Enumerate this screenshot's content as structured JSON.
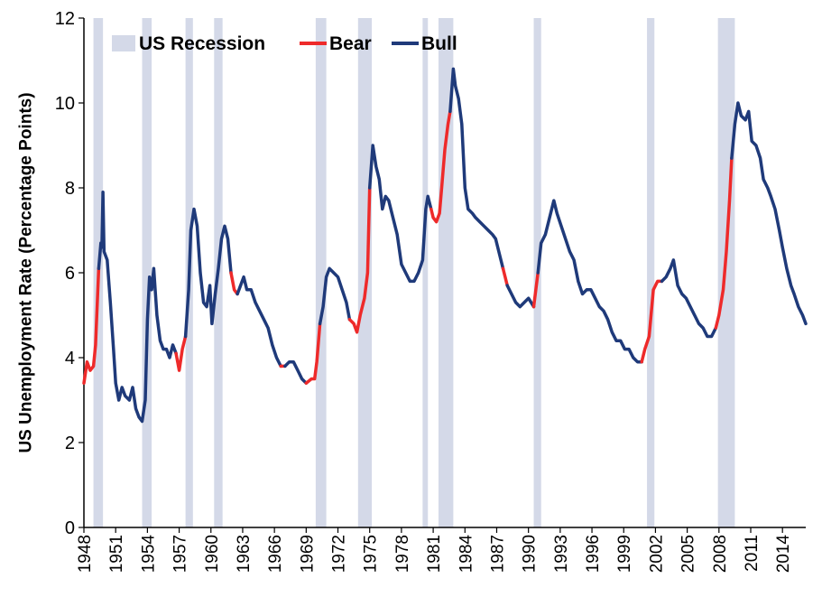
{
  "chart_data": {
    "type": "line",
    "title": "",
    "xlabel": "",
    "ylabel": "US Unemployment Rate (Percentage Points)",
    "xlim": [
      1948,
      2016.2
    ],
    "ylim": [
      0,
      12
    ],
    "yticks": [
      "0",
      "2",
      "4",
      "6",
      "8",
      "10",
      "12"
    ],
    "xticks": [
      "1948",
      "1951",
      "1954",
      "1957",
      "1960",
      "1963",
      "1966",
      "1969",
      "1972",
      "1975",
      "1978",
      "1981",
      "1984",
      "1987",
      "1990",
      "1993",
      "1996",
      "1999",
      "2002",
      "2005",
      "2008",
      "2011",
      "2014"
    ],
    "grid": false,
    "legend": {
      "position": "top-left",
      "entries": [
        {
          "name": "US Recession",
          "kind": "band",
          "color": "#d4d9e8"
        },
        {
          "name": "Bear",
          "kind": "line",
          "color": "#ee2a2a"
        },
        {
          "name": "Bull",
          "kind": "line",
          "color": "#1f3a7a"
        }
      ]
    },
    "recessions": [
      [
        1948.9,
        1949.8
      ],
      [
        1953.5,
        1954.4
      ],
      [
        1957.6,
        1958.3
      ],
      [
        1960.3,
        1961.1
      ],
      [
        1969.9,
        1970.9
      ],
      [
        1973.9,
        1975.2
      ],
      [
        1980.0,
        1980.5
      ],
      [
        1981.5,
        1982.9
      ],
      [
        1990.5,
        1991.2
      ],
      [
        2001.2,
        2001.9
      ],
      [
        2007.9,
        2009.5
      ]
    ],
    "bear_periods": [
      [
        1948.0,
        1949.4
      ],
      [
        1956.6,
        1957.7
      ],
      [
        1961.9,
        1962.5
      ],
      [
        1966.5,
        1966.9
      ],
      [
        1968.9,
        1970.4
      ],
      [
        1973.1,
        1974.9
      ],
      [
        1980.9,
        1982.6
      ],
      [
        1987.7,
        1988.0
      ],
      [
        1990.5,
        1990.9
      ],
      [
        2000.7,
        2002.4
      ],
      [
        2007.8,
        2009.2
      ]
    ],
    "series": [
      {
        "name": "Unemployment rate",
        "points": [
          [
            1948.0,
            3.4
          ],
          [
            1948.3,
            3.9
          ],
          [
            1948.6,
            3.7
          ],
          [
            1948.9,
            3.8
          ],
          [
            1949.1,
            4.3
          ],
          [
            1949.4,
            6.1
          ],
          [
            1949.6,
            6.7
          ],
          [
            1949.7,
            6.6
          ],
          [
            1949.8,
            7.9
          ],
          [
            1949.9,
            6.5
          ],
          [
            1950.2,
            6.3
          ],
          [
            1950.5,
            5.3
          ],
          [
            1950.8,
            4.2
          ],
          [
            1951.0,
            3.4
          ],
          [
            1951.3,
            3.0
          ],
          [
            1951.6,
            3.3
          ],
          [
            1951.9,
            3.1
          ],
          [
            1952.3,
            3.0
          ],
          [
            1952.6,
            3.3
          ],
          [
            1952.9,
            2.8
          ],
          [
            1953.2,
            2.6
          ],
          [
            1953.5,
            2.5
          ],
          [
            1953.8,
            3.0
          ],
          [
            1954.0,
            4.9
          ],
          [
            1954.2,
            5.9
          ],
          [
            1954.4,
            5.6
          ],
          [
            1954.6,
            6.1
          ],
          [
            1954.9,
            5.0
          ],
          [
            1955.2,
            4.4
          ],
          [
            1955.5,
            4.2
          ],
          [
            1955.8,
            4.2
          ],
          [
            1956.1,
            4.0
          ],
          [
            1956.4,
            4.3
          ],
          [
            1956.7,
            4.1
          ],
          [
            1957.0,
            3.7
          ],
          [
            1957.3,
            4.2
          ],
          [
            1957.6,
            4.5
          ],
          [
            1957.9,
            5.6
          ],
          [
            1958.1,
            7.0
          ],
          [
            1958.4,
            7.5
          ],
          [
            1958.7,
            7.1
          ],
          [
            1959.0,
            6.0
          ],
          [
            1959.3,
            5.3
          ],
          [
            1959.6,
            5.2
          ],
          [
            1959.9,
            5.7
          ],
          [
            1960.1,
            4.8
          ],
          [
            1960.4,
            5.5
          ],
          [
            1960.7,
            6.1
          ],
          [
            1961.0,
            6.8
          ],
          [
            1961.3,
            7.1
          ],
          [
            1961.6,
            6.8
          ],
          [
            1961.9,
            6.0
          ],
          [
            1962.2,
            5.6
          ],
          [
            1962.5,
            5.5
          ],
          [
            1962.8,
            5.7
          ],
          [
            1963.1,
            5.9
          ],
          [
            1963.4,
            5.6
          ],
          [
            1963.8,
            5.6
          ],
          [
            1964.2,
            5.3
          ],
          [
            1964.6,
            5.1
          ],
          [
            1965.0,
            4.9
          ],
          [
            1965.4,
            4.7
          ],
          [
            1965.8,
            4.3
          ],
          [
            1966.2,
            4.0
          ],
          [
            1966.6,
            3.8
          ],
          [
            1967.0,
            3.8
          ],
          [
            1967.4,
            3.9
          ],
          [
            1967.8,
            3.9
          ],
          [
            1968.2,
            3.7
          ],
          [
            1968.6,
            3.5
          ],
          [
            1969.0,
            3.4
          ],
          [
            1969.5,
            3.5
          ],
          [
            1969.8,
            3.5
          ],
          [
            1970.0,
            3.9
          ],
          [
            1970.3,
            4.8
          ],
          [
            1970.6,
            5.2
          ],
          [
            1970.9,
            5.9
          ],
          [
            1971.2,
            6.1
          ],
          [
            1971.6,
            6.0
          ],
          [
            1972.0,
            5.9
          ],
          [
            1972.4,
            5.6
          ],
          [
            1972.8,
            5.3
          ],
          [
            1973.1,
            4.9
          ],
          [
            1973.5,
            4.8
          ],
          [
            1973.8,
            4.6
          ],
          [
            1974.1,
            5.0
          ],
          [
            1974.5,
            5.4
          ],
          [
            1974.8,
            6.0
          ],
          [
            1975.0,
            8.0
          ],
          [
            1975.3,
            9.0
          ],
          [
            1975.6,
            8.5
          ],
          [
            1975.9,
            8.2
          ],
          [
            1976.2,
            7.5
          ],
          [
            1976.5,
            7.8
          ],
          [
            1976.8,
            7.7
          ],
          [
            1977.2,
            7.3
          ],
          [
            1977.6,
            6.9
          ],
          [
            1978.0,
            6.2
          ],
          [
            1978.4,
            6.0
          ],
          [
            1978.8,
            5.8
          ],
          [
            1979.2,
            5.8
          ],
          [
            1979.6,
            6.0
          ],
          [
            1980.0,
            6.3
          ],
          [
            1980.3,
            7.5
          ],
          [
            1980.5,
            7.8
          ],
          [
            1980.8,
            7.5
          ],
          [
            1981.0,
            7.3
          ],
          [
            1981.3,
            7.2
          ],
          [
            1981.6,
            7.4
          ],
          [
            1981.8,
            8.0
          ],
          [
            1982.1,
            8.9
          ],
          [
            1982.4,
            9.5
          ],
          [
            1982.6,
            9.8
          ],
          [
            1982.9,
            10.8
          ],
          [
            1983.1,
            10.4
          ],
          [
            1983.4,
            10.1
          ],
          [
            1983.7,
            9.5
          ],
          [
            1984.0,
            8.0
          ],
          [
            1984.3,
            7.5
          ],
          [
            1984.7,
            7.4
          ],
          [
            1985.0,
            7.3
          ],
          [
            1985.4,
            7.2
          ],
          [
            1985.8,
            7.1
          ],
          [
            1986.2,
            7.0
          ],
          [
            1986.6,
            6.9
          ],
          [
            1986.9,
            6.8
          ],
          [
            1987.2,
            6.5
          ],
          [
            1987.6,
            6.1
          ],
          [
            1988.0,
            5.7
          ],
          [
            1988.4,
            5.5
          ],
          [
            1988.8,
            5.3
          ],
          [
            1989.2,
            5.2
          ],
          [
            1989.6,
            5.3
          ],
          [
            1990.0,
            5.4
          ],
          [
            1990.5,
            5.2
          ],
          [
            1990.9,
            6.0
          ],
          [
            1991.2,
            6.7
          ],
          [
            1991.6,
            6.9
          ],
          [
            1992.0,
            7.3
          ],
          [
            1992.4,
            7.7
          ],
          [
            1992.7,
            7.4
          ],
          [
            1993.1,
            7.1
          ],
          [
            1993.5,
            6.8
          ],
          [
            1993.9,
            6.5
          ],
          [
            1994.3,
            6.3
          ],
          [
            1994.7,
            5.8
          ],
          [
            1995.1,
            5.5
          ],
          [
            1995.5,
            5.6
          ],
          [
            1995.9,
            5.6
          ],
          [
            1996.3,
            5.4
          ],
          [
            1996.7,
            5.2
          ],
          [
            1997.1,
            5.1
          ],
          [
            1997.5,
            4.9
          ],
          [
            1997.9,
            4.6
          ],
          [
            1998.3,
            4.4
          ],
          [
            1998.7,
            4.4
          ],
          [
            1999.1,
            4.2
          ],
          [
            1999.5,
            4.2
          ],
          [
            1999.9,
            4.0
          ],
          [
            2000.3,
            3.9
          ],
          [
            2000.7,
            3.9
          ],
          [
            2001.0,
            4.2
          ],
          [
            2001.4,
            4.5
          ],
          [
            2001.8,
            5.6
          ],
          [
            2002.2,
            5.8
          ],
          [
            2002.6,
            5.8
          ],
          [
            2003.0,
            5.9
          ],
          [
            2003.4,
            6.1
          ],
          [
            2003.7,
            6.3
          ],
          [
            2004.1,
            5.7
          ],
          [
            2004.5,
            5.5
          ],
          [
            2004.9,
            5.4
          ],
          [
            2005.3,
            5.2
          ],
          [
            2005.7,
            5.0
          ],
          [
            2006.1,
            4.8
          ],
          [
            2006.5,
            4.7
          ],
          [
            2006.9,
            4.5
          ],
          [
            2007.3,
            4.5
          ],
          [
            2007.7,
            4.7
          ],
          [
            2008.0,
            5.0
          ],
          [
            2008.4,
            5.6
          ],
          [
            2008.7,
            6.5
          ],
          [
            2009.0,
            7.7
          ],
          [
            2009.2,
            8.7
          ],
          [
            2009.5,
            9.5
          ],
          [
            2009.8,
            10.0
          ],
          [
            2010.1,
            9.7
          ],
          [
            2010.5,
            9.6
          ],
          [
            2010.8,
            9.8
          ],
          [
            2011.1,
            9.1
          ],
          [
            2011.5,
            9.0
          ],
          [
            2011.9,
            8.7
          ],
          [
            2012.2,
            8.2
          ],
          [
            2012.6,
            8.0
          ],
          [
            2012.9,
            7.8
          ],
          [
            2013.3,
            7.5
          ],
          [
            2013.7,
            7.0
          ],
          [
            2014.0,
            6.6
          ],
          [
            2014.4,
            6.1
          ],
          [
            2014.8,
            5.7
          ],
          [
            2015.1,
            5.5
          ],
          [
            2015.5,
            5.2
          ],
          [
            2015.9,
            5.0
          ],
          [
            2016.2,
            4.8
          ]
        ]
      }
    ]
  }
}
